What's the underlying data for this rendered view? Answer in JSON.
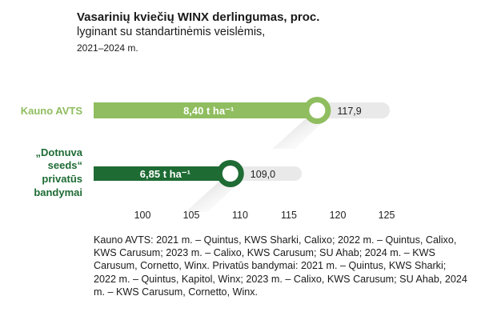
{
  "chart_data": {
    "type": "bar",
    "orientation": "horizontal",
    "title": "Vasarinių kviečių WINX derlingumas, proc.",
    "subtitle": "lyginant su standartinėmis veislėmis,",
    "period": "2021–2024 m.",
    "xlim": [
      95,
      127
    ],
    "x_ticks": [
      "100",
      "105",
      "110",
      "115",
      "120",
      "125"
    ],
    "x_tick_values": [
      100,
      105,
      110,
      115,
      120,
      125
    ],
    "categories": [
      {
        "label_lines": [
          "Kauno AVTS"
        ],
        "value": 117.9,
        "value_label": "117,9",
        "yield_label": "8,40 t ha⁻¹",
        "color": "#8fbd5f"
      },
      {
        "label_lines": [
          "„Dotnuva",
          "seeds“",
          "privatūs",
          "bandymai"
        ],
        "value": 109.0,
        "value_label": "109,0",
        "yield_label": "6,85 t ha⁻¹",
        "color": "#1e6b34"
      }
    ],
    "grid": false,
    "legend": "none"
  },
  "notes": "Kauno AVTS: 2021 m. – Quintus, KWS Sharki, Calixo; 2022 m. – Quintus, Calixo, KWS Carusum; 2023 m. – Calixo, KWS Carusum; SU Ahab; 2024 m. – KWS Carusum, Cornetto, Winx. Privatūs bandymai: 2021 m. – Quintus, KWS Sharki; 2022 m. – Quintus, Kapitol, Winx; 2023 m. – Calixo, KWS Carusum; SU Ahab, 2024 m. – KWS Carusum, Cornetto, Winx."
}
